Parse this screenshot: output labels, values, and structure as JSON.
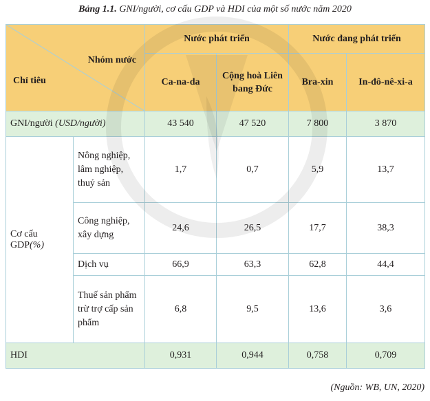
{
  "caption": {
    "label": "Bảng 1.1.",
    "text": "GNI/người, cơ cấu GDP và HDI của một số nước năm 2020"
  },
  "header": {
    "row_group_label": "Nhóm nước",
    "col_label": "Chỉ tiêu",
    "groups": [
      "Nước phát triển",
      "Nước đang phát triển"
    ],
    "countries": [
      "Ca-na-da",
      "Cộng hoà Liên bang Đức",
      "Bra-xin",
      "In-đô-nê-xi-a"
    ]
  },
  "gni": {
    "label": "GNI/người",
    "unit": "(USD/người)",
    "values": [
      "43 540",
      "47 520",
      "7 800",
      "3 870"
    ]
  },
  "gdp": {
    "label": "Cơ cấu GDP",
    "unit": "(%)",
    "rows": [
      {
        "sector": "Nông nghiệp, lâm nghiệp, thuỷ sản",
        "values": [
          "1,7",
          "0,7",
          "5,9",
          "13,7"
        ]
      },
      {
        "sector": "Công nghiệp, xây dựng",
        "values": [
          "24,6",
          "26,5",
          "17,7",
          "38,3"
        ]
      },
      {
        "sector": "Dịch vụ",
        "values": [
          "66,9",
          "63,3",
          "62,8",
          "44,4"
        ]
      },
      {
        "sector": "Thuế sản phẩm trừ trợ cấp sản phẩm",
        "values": [
          "6,8",
          "9,5",
          "13,6",
          "3,6"
        ]
      }
    ]
  },
  "hdi": {
    "label": "HDI",
    "values": [
      "0,931",
      "0,944",
      "0,758",
      "0,709"
    ]
  },
  "source": "(Nguồn: WB, UN, 2020)",
  "colors": {
    "header_bg": "#f7cf77",
    "green_row_bg": "#def0dc",
    "grid": "#a9cfd9"
  }
}
